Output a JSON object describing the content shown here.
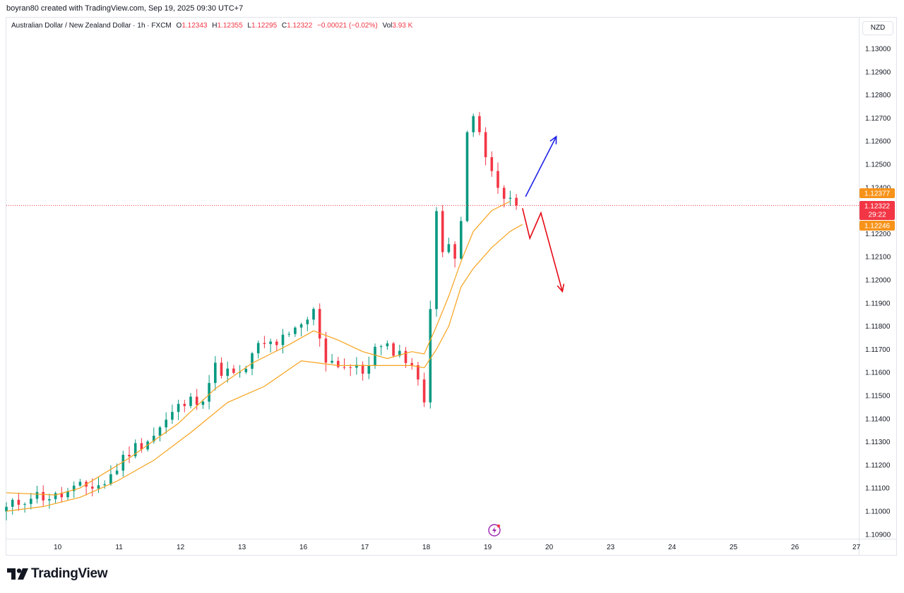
{
  "header": {
    "attribution": "boyran80 created with TradingView.com, Sep 19, 2025 09:30 UTC+7"
  },
  "legend": {
    "symbol": "Australian Dollar / New Zealand Dollar · 1h · FXCM",
    "open_label": "O",
    "open": "1.12343",
    "high_label": "H",
    "high": "1.12355",
    "low_label": "L",
    "low": "1.12295",
    "close_label": "C",
    "close": "1.12322",
    "change": "−0.00021 (−0.02%)",
    "vol_label": "Vol",
    "vol": "3.93 K"
  },
  "currency_button": "NZD",
  "price_labels": {
    "upper": "1.12377",
    "current": "1.12322",
    "countdown": "29:22",
    "lower": "1.12246"
  },
  "colors": {
    "up": "#089981",
    "down": "#f23645",
    "ma": "#f7a21b",
    "arrow_up": "#1e22e6",
    "arrow_down": "#e50914",
    "grid": "#e0e3eb",
    "price_line": "#f23645",
    "label_orange": "#f7931a"
  },
  "logo": {
    "text": "TradingView",
    "icon": "tradingview-logo-icon"
  },
  "chart_data": {
    "type": "candlestick",
    "symbol": "AUDNZD",
    "interval": "1h",
    "ylim": [
      1.109,
      1.131
    ],
    "y_ticks": [
      "1.13000",
      "1.12900",
      "1.12800",
      "1.12700",
      "1.12600",
      "1.12500",
      "1.12400",
      "1.12300",
      "1.12200",
      "1.12100",
      "1.12000",
      "1.11900",
      "1.11800",
      "1.11700",
      "1.11600",
      "1.11500",
      "1.11400",
      "1.11300",
      "1.11200",
      "1.11100",
      "1.11000",
      "1.10900"
    ],
    "x_ticks": [
      "10",
      "11",
      "12",
      "13",
      "16",
      "17",
      "18",
      "19",
      "20",
      "23",
      "24",
      "25",
      "26",
      "27"
    ],
    "x_tick_index": [
      8,
      18,
      28,
      38,
      48,
      58,
      68,
      78,
      88,
      98,
      108,
      118,
      128,
      138
    ],
    "current_price": 1.12322,
    "price_key_points": [
      {
        "i": 0,
        "p": 1.1101
      },
      {
        "i": 4,
        "p": 1.1107
      },
      {
        "i": 8,
        "p": 1.1106
      },
      {
        "i": 12,
        "p": 1.111
      },
      {
        "i": 16,
        "p": 1.1112
      },
      {
        "i": 20,
        "p": 1.1126
      },
      {
        "i": 24,
        "p": 1.1133
      },
      {
        "i": 28,
        "p": 1.1145
      },
      {
        "i": 32,
        "p": 1.115
      },
      {
        "i": 34,
        "p": 1.1162
      },
      {
        "i": 38,
        "p": 1.1158
      },
      {
        "i": 41,
        "p": 1.1171
      },
      {
        "i": 44,
        "p": 1.1173
      },
      {
        "i": 46,
        "p": 1.1175
      },
      {
        "i": 48,
        "p": 1.118
      },
      {
        "i": 50,
        "p": 1.1186
      },
      {
        "i": 52,
        "p": 1.1166
      },
      {
        "i": 55,
        "p": 1.1163
      },
      {
        "i": 58,
        "p": 1.116
      },
      {
        "i": 60,
        "p": 1.117
      },
      {
        "i": 63,
        "p": 1.117
      },
      {
        "i": 66,
        "p": 1.1164
      },
      {
        "i": 67,
        "p": 1.1155
      },
      {
        "i": 68,
        "p": 1.1148
      },
      {
        "i": 69,
        "p": 1.119
      },
      {
        "i": 70,
        "p": 1.123
      },
      {
        "i": 71,
        "p": 1.121
      },
      {
        "i": 72,
        "p": 1.1215
      },
      {
        "i": 73,
        "p": 1.1212
      },
      {
        "i": 74,
        "p": 1.1228
      },
      {
        "i": 75,
        "p": 1.1265
      },
      {
        "i": 76,
        "p": 1.1268
      },
      {
        "i": 77,
        "p": 1.1264
      },
      {
        "i": 78,
        "p": 1.1252
      },
      {
        "i": 80,
        "p": 1.124
      },
      {
        "i": 82,
        "p": 1.1235
      },
      {
        "i": 83,
        "p": 1.1232
      }
    ],
    "moving_averages": [
      {
        "name": "",
        "points": [
          {
            "i": 0,
            "p": 1.1108
          },
          {
            "i": 8,
            "p": 1.1107
          },
          {
            "i": 12,
            "p": 1.111
          },
          {
            "i": 20,
            "p": 1.1123
          },
          {
            "i": 28,
            "p": 1.1138
          },
          {
            "i": 34,
            "p": 1.1153
          },
          {
            "i": 40,
            "p": 1.1164
          },
          {
            "i": 46,
            "p": 1.1172
          },
          {
            "i": 50,
            "p": 1.1178
          },
          {
            "i": 54,
            "p": 1.1174
          },
          {
            "i": 58,
            "p": 1.1169
          },
          {
            "i": 62,
            "p": 1.1166
          },
          {
            "i": 66,
            "p": 1.1169
          },
          {
            "i": 68,
            "p": 1.1168
          },
          {
            "i": 70,
            "p": 1.118
          },
          {
            "i": 72,
            "p": 1.1193
          },
          {
            "i": 74,
            "p": 1.1208
          },
          {
            "i": 76,
            "p": 1.1221
          },
          {
            "i": 79,
            "p": 1.123
          },
          {
            "i": 82,
            "p": 1.1234
          }
        ]
      },
      {
        "name": "",
        "points": [
          {
            "i": 0,
            "p": 1.11
          },
          {
            "i": 6,
            "p": 1.1102
          },
          {
            "i": 12,
            "p": 1.1106
          },
          {
            "i": 18,
            "p": 1.1113
          },
          {
            "i": 24,
            "p": 1.1122
          },
          {
            "i": 30,
            "p": 1.1134
          },
          {
            "i": 36,
            "p": 1.1147
          },
          {
            "i": 42,
            "p": 1.1154
          },
          {
            "i": 48,
            "p": 1.1165
          },
          {
            "i": 54,
            "p": 1.1163
          },
          {
            "i": 60,
            "p": 1.1163
          },
          {
            "i": 66,
            "p": 1.1163
          },
          {
            "i": 68,
            "p": 1.1162
          },
          {
            "i": 70,
            "p": 1.117
          },
          {
            "i": 72,
            "p": 1.118
          },
          {
            "i": 74,
            "p": 1.1197
          },
          {
            "i": 76,
            "p": 1.1205
          },
          {
            "i": 79,
            "p": 1.1214
          },
          {
            "i": 82,
            "p": 1.1221
          },
          {
            "i": 84,
            "p": 1.1224
          }
        ]
      }
    ],
    "drawings": {
      "blue_arrow": {
        "from": {
          "i": 84.5,
          "p": 1.1236
        },
        "to": {
          "i": 89.5,
          "p": 1.1262
        }
      },
      "red_path": [
        {
          "i": 84,
          "p": 1.1231
        },
        {
          "i": 85.2,
          "p": 1.1218
        },
        {
          "i": 87,
          "p": 1.1229
        },
        {
          "i": 90.5,
          "p": 1.1195
        }
      ]
    }
  }
}
